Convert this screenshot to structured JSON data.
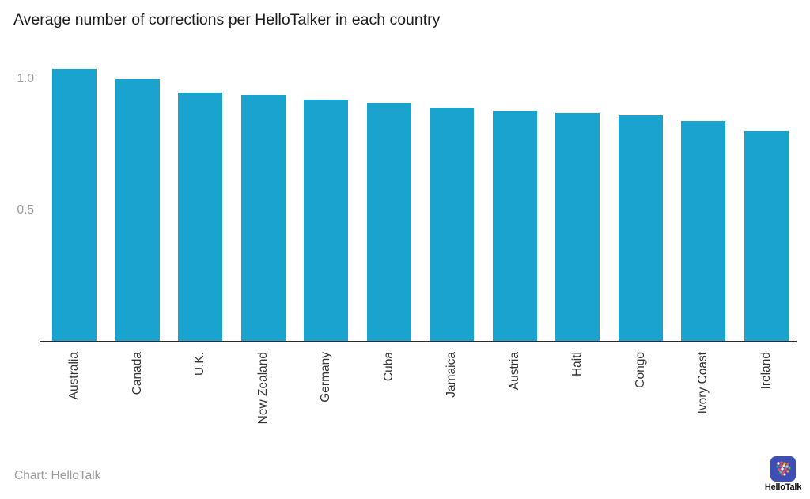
{
  "title": "Average number of corrections per HelloTalker in each country",
  "footer": {
    "credit": "Chart: HelloTalk",
    "logo_label": "HelloTalk"
  },
  "icons": {
    "logo": "hellotalk-app-icon"
  },
  "colors": {
    "bar": "#1ba3cf",
    "axis_line": "#2b2b2b",
    "y_tick_label": "#9b9b9b",
    "x_tick_label": "#333333",
    "title_text": "#1d1d1d",
    "credit_text": "#9b9b9b",
    "logo_background": "#3d4eb5"
  },
  "chart_data": {
    "type": "bar",
    "title": "Average number of corrections per HelloTalker in each country",
    "categories": [
      "Australia",
      "Canada",
      "U.K.",
      "New Zealand",
      "Germany",
      "Cuba",
      "Jamaica",
      "Austria",
      "Haiti",
      "Congo",
      "Ivory Coast",
      "Ireland"
    ],
    "values": [
      1.04,
      1.0,
      0.95,
      0.94,
      0.92,
      0.91,
      0.89,
      0.88,
      0.87,
      0.86,
      0.84,
      0.8
    ],
    "xlabel": "",
    "ylabel": "",
    "yticks": [
      0.5,
      1.0
    ],
    "ylim": [
      0,
      1.1
    ],
    "grid": false,
    "legend": false,
    "bar_orientation": "vertical",
    "x_tick_rotation": 90
  }
}
